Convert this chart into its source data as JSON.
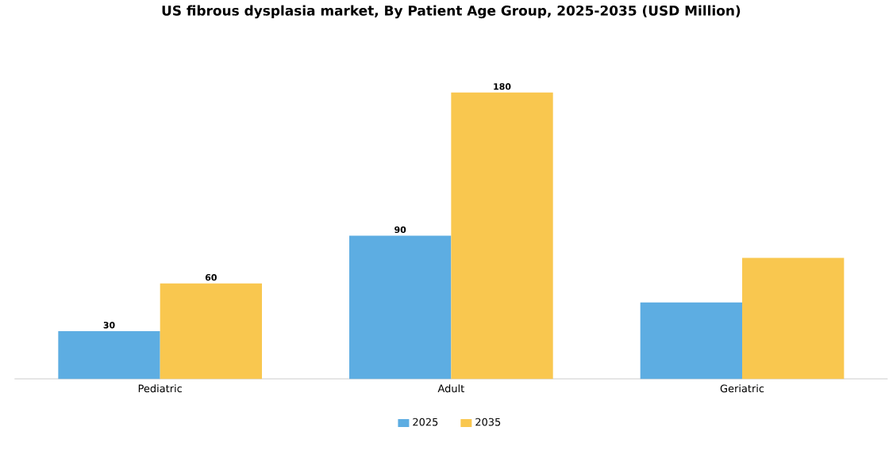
{
  "chart_data": {
    "type": "bar",
    "title": "US fibrous dysplasia market, By Patient Age Group, 2025-2035 (USD Million)",
    "categories": [
      "Pediatric",
      "Adult",
      "Geriatric"
    ],
    "series": [
      {
        "name": "2025",
        "color": "#5dade2",
        "values": [
          30,
          90,
          48
        ],
        "value_labels": [
          "30",
          "90",
          null
        ]
      },
      {
        "name": "2035",
        "color": "#f9c74f",
        "values": [
          60,
          180,
          76
        ],
        "value_labels": [
          "60",
          "180",
          null
        ]
      }
    ],
    "legend": "bottom"
  }
}
